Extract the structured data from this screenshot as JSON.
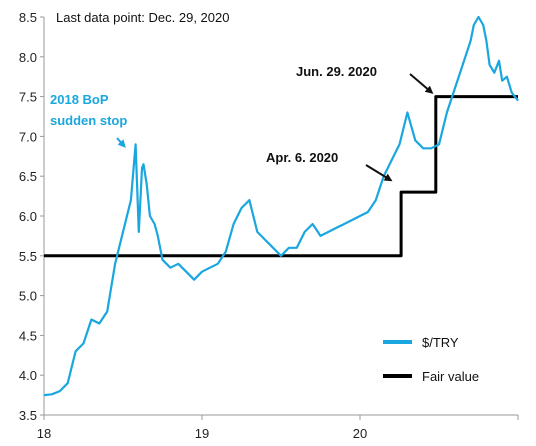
{
  "chart_data": {
    "type": "line",
    "title": "",
    "note": "Last data point: Dec. 29, 2020",
    "xlabel": "",
    "ylabel": "",
    "xlim": [
      18,
      21
    ],
    "ylim": [
      3.5,
      8.5
    ],
    "x_ticks": [
      18,
      19,
      20
    ],
    "x_tick_labels": [
      "18",
      "19",
      "20"
    ],
    "y_ticks": [
      3.5,
      4.0,
      4.5,
      5.0,
      5.5,
      6.0,
      6.5,
      7.0,
      7.5,
      8.0,
      8.5
    ],
    "y_tick_labels": [
      "3.5",
      "4.0",
      "4.5",
      "5.0",
      "5.5",
      "6.0",
      "6.5",
      "7.0",
      "7.5",
      "8.0",
      "8.5"
    ],
    "grid": false,
    "legend_position": "bottom-right",
    "series": [
      {
        "name": "$/TRY",
        "color": "#1aa6df",
        "x": [
          18.0,
          18.05,
          18.1,
          18.15,
          18.2,
          18.25,
          18.3,
          18.35,
          18.4,
          18.45,
          18.5,
          18.55,
          18.58,
          18.6,
          18.62,
          18.63,
          18.65,
          18.67,
          18.7,
          18.72,
          18.75,
          18.8,
          18.85,
          18.9,
          18.95,
          19.0,
          19.05,
          19.1,
          19.15,
          19.2,
          19.25,
          19.3,
          19.35,
          19.4,
          19.45,
          19.5,
          19.55,
          19.6,
          19.65,
          19.7,
          19.75,
          19.8,
          19.85,
          19.9,
          19.95,
          20.0,
          20.05,
          20.1,
          20.15,
          20.2,
          20.25,
          20.3,
          20.35,
          20.4,
          20.45,
          20.5,
          20.55,
          20.6,
          20.65,
          20.7,
          20.72,
          20.75,
          20.78,
          20.8,
          20.82,
          20.85,
          20.88,
          20.9,
          20.93,
          20.96,
          21.0
        ],
        "values": [
          3.75,
          3.76,
          3.8,
          3.9,
          4.3,
          4.4,
          4.7,
          4.65,
          4.8,
          5.4,
          5.8,
          6.2,
          6.9,
          5.8,
          6.6,
          6.65,
          6.4,
          6.0,
          5.9,
          5.75,
          5.45,
          5.35,
          5.4,
          5.3,
          5.2,
          5.3,
          5.35,
          5.4,
          5.55,
          5.9,
          6.1,
          6.2,
          5.8,
          5.7,
          5.6,
          5.5,
          5.6,
          5.6,
          5.8,
          5.9,
          5.75,
          5.8,
          5.85,
          5.9,
          5.95,
          6.0,
          6.05,
          6.2,
          6.5,
          6.7,
          6.9,
          7.3,
          6.95,
          6.85,
          6.85,
          6.9,
          7.3,
          7.6,
          7.9,
          8.2,
          8.4,
          8.5,
          8.4,
          8.2,
          7.9,
          7.8,
          7.95,
          7.7,
          7.75,
          7.55,
          7.45
        ]
      },
      {
        "name": "Fair value",
        "color": "#000000",
        "step": true,
        "x": [
          18.0,
          20.26,
          20.26,
          20.48,
          20.48,
          21.0
        ],
        "values": [
          5.5,
          5.5,
          6.3,
          6.3,
          7.5,
          7.5
        ]
      }
    ],
    "annotations": [
      {
        "text_lines": [
          "2018 BoP",
          "sudden stop"
        ],
        "color": "#1aa6df",
        "target_x": 18.56,
        "target_y": 6.9
      },
      {
        "text_lines": [
          "Apr. 6. 2020"
        ],
        "color": "#111111",
        "target_x": 20.22,
        "target_y": 6.45
      },
      {
        "text_lines": [
          "Jun. 29. 2020"
        ],
        "color": "#111111",
        "target_x": 20.48,
        "target_y": 7.55
      }
    ]
  }
}
